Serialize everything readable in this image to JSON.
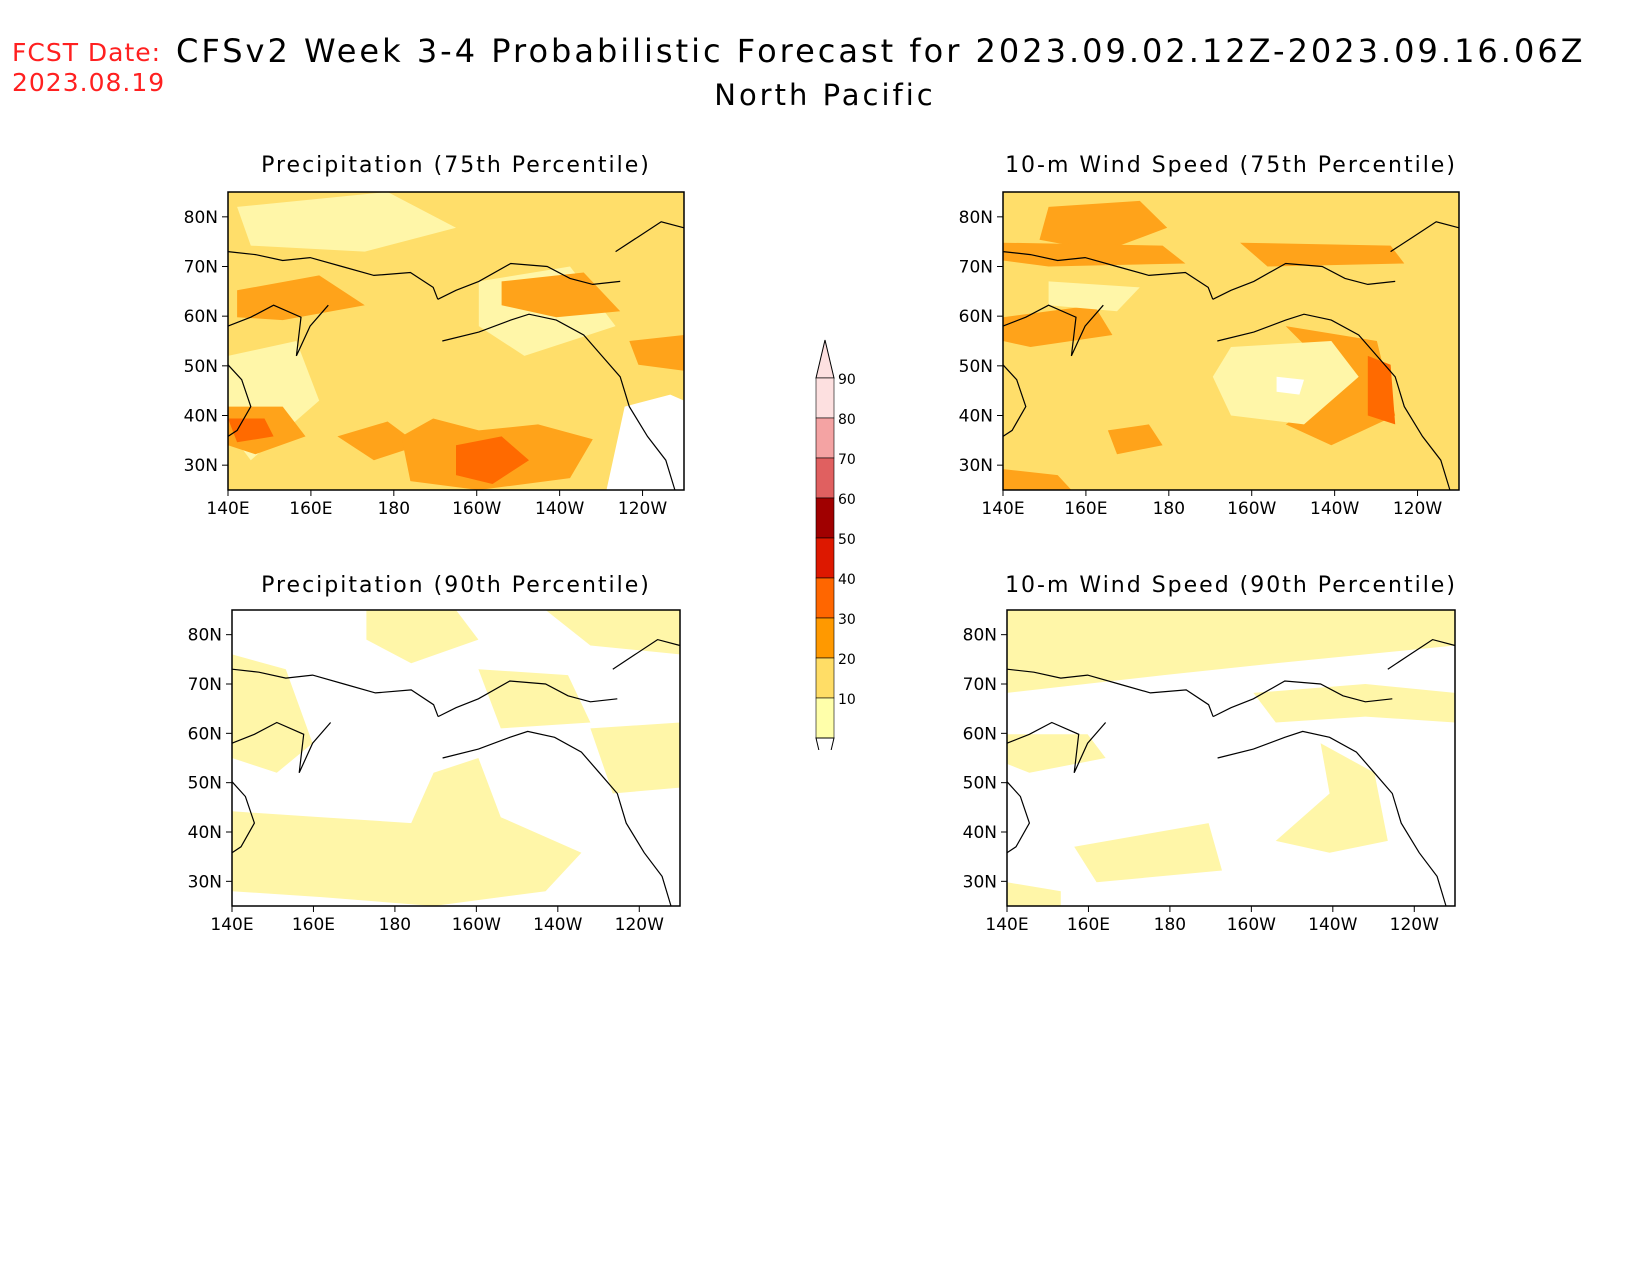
{
  "header": {
    "fcst_label": "FCST Date:",
    "fcst_date": "2023.08.19",
    "title": "CFSv2 Week 3-4 Probabilistic Forecast for 2023.09.02.12Z-2023.09.16.06Z",
    "region": "North Pacific"
  },
  "axes": {
    "lon_ticks": [
      "140E",
      "160E",
      "180",
      "160W",
      "140W",
      "120W"
    ],
    "lat_ticks": [
      "80N",
      "70N",
      "60N",
      "50N",
      "40N",
      "30N"
    ]
  },
  "panels": [
    {
      "title": "Precipitation (75th Percentile)",
      "level": "mid"
    },
    {
      "title": "10-m Wind Speed (75th Percentile)",
      "level": "mid"
    },
    {
      "title": "Precipitation (90th Percentile)",
      "level": "low"
    },
    {
      "title": "10-m Wind Speed (90th Percentile)",
      "level": "low"
    }
  ],
  "colorbar": {
    "labels": [
      "90",
      "80",
      "70",
      "60",
      "50",
      "40",
      "30",
      "20",
      "10"
    ],
    "colors": [
      "#fde0e0",
      "#f4a3a3",
      "#e06060",
      "#a00000",
      "#dd1800",
      "#ff6600",
      "#ff9900",
      "#ffdd66",
      "#ffffaa"
    ]
  },
  "map_colors": {
    "c10_20": "#fff6a8",
    "c20_30": "#ffde6a",
    "c30_40": "#ffa31a",
    "c40_50": "#ff6a00",
    "c50_60": "#e61e00",
    "white": "#ffffff",
    "coast": "#000000"
  }
}
